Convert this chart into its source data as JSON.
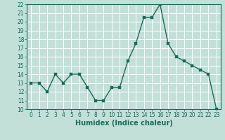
{
  "x": [
    0,
    1,
    2,
    3,
    4,
    5,
    6,
    7,
    8,
    9,
    10,
    11,
    12,
    13,
    14,
    15,
    16,
    17,
    18,
    19,
    20,
    21,
    22,
    23
  ],
  "y": [
    13,
    13,
    12,
    14,
    13,
    14,
    14,
    12.5,
    11,
    11,
    12.5,
    12.5,
    15.5,
    17.5,
    20.5,
    20.5,
    22,
    17.5,
    16,
    15.5,
    15,
    14.5,
    14,
    10
  ],
  "line_color": "#1a6b5a",
  "marker_color": "#1a6b5a",
  "bg_color": "#c2e0d8",
  "grid_color": "#ffffff",
  "xlabel": "Humidex (Indice chaleur)",
  "ylim": [
    10,
    22
  ],
  "xlim": [
    -0.5,
    23.5
  ],
  "yticks": [
    10,
    11,
    12,
    13,
    14,
    15,
    16,
    17,
    18,
    19,
    20,
    21,
    22
  ],
  "xticks": [
    0,
    1,
    2,
    3,
    4,
    5,
    6,
    7,
    8,
    9,
    10,
    11,
    12,
    13,
    14,
    15,
    16,
    17,
    18,
    19,
    20,
    21,
    22,
    23
  ],
  "tick_label_fontsize": 5.5,
  "xlabel_fontsize": 7,
  "marker_size": 2.2,
  "line_width": 1.0
}
